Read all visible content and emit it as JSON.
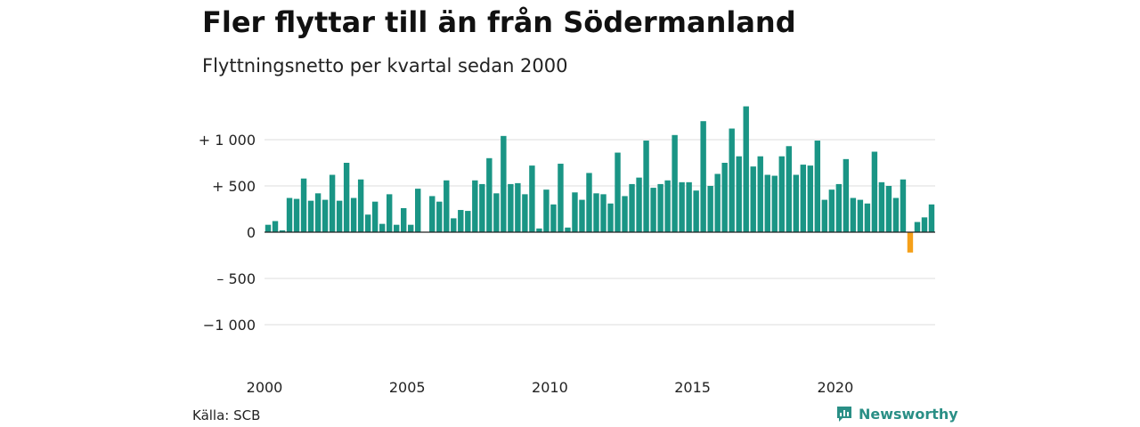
{
  "title": "Fler flyttar till än från Södermanland",
  "subtitle": "Flyttningsnetto per kvartal sedan 2000",
  "source": "Källa: SCB",
  "brand": "Newsworthy",
  "colors": {
    "positive": "#1a9585",
    "negative": "#f5a01a",
    "grid": "#dddddd",
    "zero": "#222222"
  },
  "chart_data": {
    "type": "bar",
    "title": "Fler flyttar till än från Södermanland",
    "subtitle": "Flyttningsnetto per kvartal sedan 2000",
    "xlabel": "",
    "ylabel": "",
    "ylim": [
      -1200,
      1400
    ],
    "grid": true,
    "yticks": [
      {
        "value": 1000,
        "label": "+ 1 000"
      },
      {
        "value": 500,
        "label": "+     500"
      },
      {
        "value": 0,
        "label": "0"
      },
      {
        "value": -500,
        "label": "–   500"
      },
      {
        "value": -1000,
        "label": "−1 000"
      }
    ],
    "xticks": [
      "2000",
      "2005",
      "2010",
      "2015",
      "2020"
    ],
    "x_start": "2000 Q1",
    "x_end": "2023 Q4",
    "values": [
      80,
      120,
      20,
      370,
      360,
      580,
      340,
      420,
      350,
      620,
      340,
      750,
      370,
      570,
      190,
      330,
      90,
      410,
      80,
      260,
      80,
      470,
      5,
      390,
      330,
      560,
      150,
      240,
      230,
      560,
      520,
      800,
      420,
      1040,
      520,
      530,
      410,
      720,
      40,
      460,
      300,
      740,
      50,
      430,
      350,
      640,
      420,
      410,
      310,
      860,
      390,
      520,
      590,
      990,
      480,
      520,
      560,
      1050,
      540,
      540,
      450,
      1200,
      500,
      630,
      750,
      1120,
      820,
      1360,
      710,
      820,
      620,
      610,
      820,
      930,
      620,
      730,
      720,
      990,
      350,
      460,
      520,
      790,
      370,
      350,
      310,
      870,
      540,
      500,
      370,
      570,
      -220,
      110,
      160,
      300
    ]
  }
}
